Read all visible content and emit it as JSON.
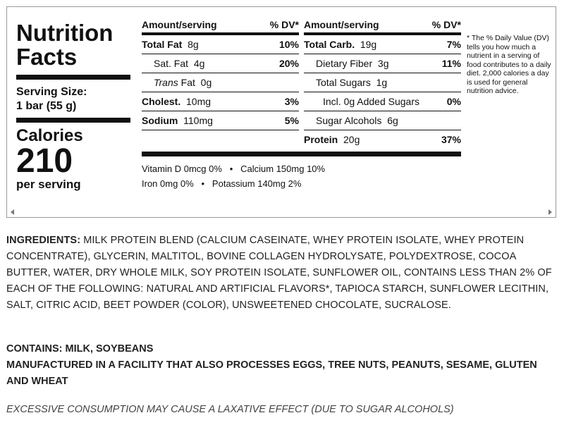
{
  "nutrition": {
    "title_line1": "Nutrition",
    "title_line2": "Facts",
    "serving_label": "Serving Size:",
    "serving_value": "1 bar (55 g)",
    "calories_label": "Calories",
    "calories_value": "210",
    "per_serving": "per serving",
    "header_amount": "Amount/serving",
    "header_dv": "% DV*",
    "left_rows": [
      {
        "name": "Total Fat",
        "amount": "8g",
        "dv": "10%"
      },
      {
        "name": "Sat. Fat",
        "amount": "4g",
        "dv": "20%"
      },
      {
        "name": "Trans",
        "name_suffix": "Fat",
        "amount": "0g",
        "dv": ""
      },
      {
        "name": "Cholest.",
        "amount": "10mg",
        "dv": "3%"
      },
      {
        "name": "Sodium",
        "amount": "110mg",
        "dv": "5%"
      }
    ],
    "right_rows": [
      {
        "name": "Total Carb.",
        "amount": "19g",
        "dv": "7%"
      },
      {
        "name": "Dietary Fiber",
        "amount": "3g",
        "dv": "11%"
      },
      {
        "name": "Total Sugars",
        "amount": "1g",
        "dv": ""
      },
      {
        "name": "Incl. 0g Added Sugars",
        "amount": "",
        "dv": "0%"
      },
      {
        "name": "Sugar Alcohols",
        "amount": "6g",
        "dv": ""
      },
      {
        "name": "Protein",
        "amount": "20g",
        "dv": "37%"
      }
    ],
    "vitamins_line1": "Vitamin D 0mcg 0%   •   Calcium 150mg 10%",
    "vitamins_line2": "Iron 0mg 0%   •   Potassium 140mg 2%",
    "footnote": "* The % Daily Value (DV) tells you how much a nutrient in a serving of food contributes to a daily diet. 2,000 calories a day is used for general nutrition advice."
  },
  "ingredients": {
    "label": "INGREDIENTS:",
    "text": " MILK PROTEIN BLEND (CALCIUM CASEINATE, WHEY PROTEIN ISOLATE, WHEY PROTEIN CONCENTRATE), GLYCERIN, MALTITOL, BOVINE COLLAGEN HYDROLYSATE, POLYDEXTROSE, COCOA BUTTER, WATER, DRY WHOLE MILK, SOY PROTEIN ISOLATE, SUNFLOWER OIL, CONTAINS LESS THAN 2% OF EACH OF THE FOLLOWING: NATURAL AND ARTIFICIAL FLAVORS*, TAPIOCA STARCH, SUNFLOWER LECITHIN, SALT, CITRIC ACID, BEET POWDER (COLOR), UNSWEETENED CHOCOLATE, SUCRALOSE."
  },
  "contains": {
    "line1": "CONTAINS: MILK, SOYBEANS",
    "line2": "MANUFACTURED IN A FACILITY THAT ALSO PROCESSES EGGS, TREE NUTS, PEANUTS, SESAME, GLUTEN AND WHEAT"
  },
  "warning": "EXCESSIVE CONSUMPTION MAY CAUSE A LAXATIVE EFFECT (DUE TO SUGAR ALCOHOLS)",
  "icons": {
    "scroll_left": "scroll-left-arrow-icon",
    "scroll_right": "scroll-right-arrow-icon"
  }
}
